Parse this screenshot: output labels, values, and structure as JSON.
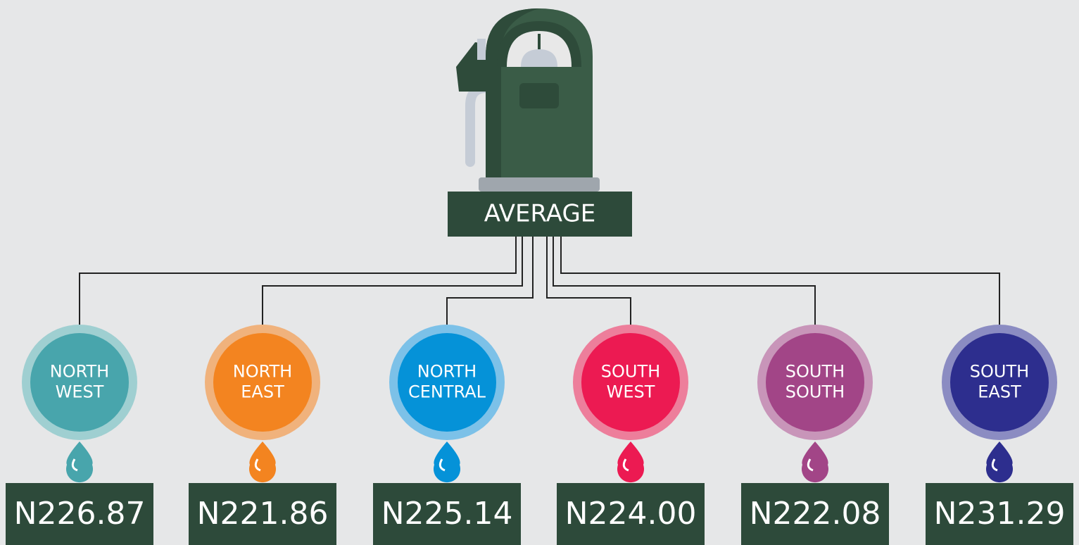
{
  "header": {
    "label": "AVERAGE"
  },
  "regions": [
    {
      "name_lines": [
        "NORTH",
        "WEST"
      ],
      "price": "N226.87",
      "color": "#48a5ac",
      "ring": "#9fcfd1"
    },
    {
      "name_lines": [
        "NORTH",
        "EAST"
      ],
      "price": "N221.86",
      "color": "#f38420",
      "ring": "#f0b27c"
    },
    {
      "name_lines": [
        "NORTH",
        "CENTRAL"
      ],
      "price": "N225.14",
      "color": "#0592d8",
      "ring": "#7cc1e8"
    },
    {
      "name_lines": [
        "SOUTH",
        "WEST"
      ],
      "price": "N224.00",
      "color": "#ec1a52",
      "ring": "#ed7e9b"
    },
    {
      "name_lines": [
        "SOUTH",
        "SOUTH"
      ],
      "price": "N222.08",
      "color": "#a24587",
      "ring": "#c895b9"
    },
    {
      "name_lines": [
        "SOUTH",
        "EAST"
      ],
      "price": "N231.29",
      "color": "#2d2e8e",
      "ring": "#8b8cc2"
    }
  ]
}
